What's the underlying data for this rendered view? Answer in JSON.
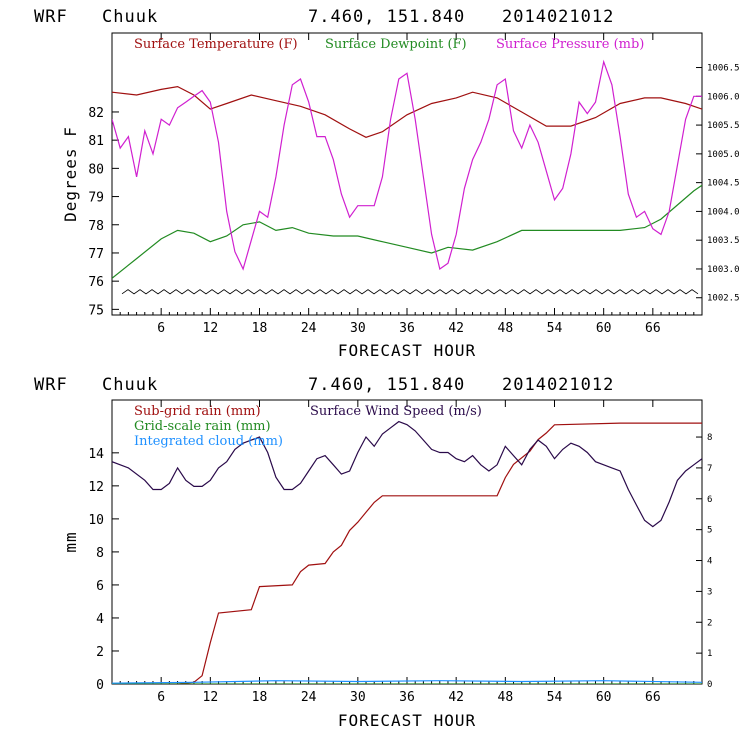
{
  "chart_data": [
    {
      "type": "line",
      "header": {
        "model": "WRF",
        "location": "Chuuk",
        "coords": "7.460, 151.840",
        "run": "2014021012"
      },
      "xlabel": "FORECAST HOUR",
      "ylabel": "Degrees F",
      "xlim": [
        0,
        72
      ],
      "ylim": [
        74.8,
        84.8
      ],
      "y2lim": [
        1002.2,
        1007.1
      ],
      "x_ticks": [
        "6",
        "12",
        "18",
        "24",
        "30",
        "36",
        "42",
        "48",
        "54",
        "60",
        "66"
      ],
      "y_ticks": [
        "75",
        "76",
        "77",
        "78",
        "79",
        "80",
        "81",
        "82"
      ],
      "y2_ticks": [
        "1002.5",
        "1003.0",
        "1003.5",
        "1004.0",
        "1004.5",
        "1005.0",
        "1005.5",
        "1006.0",
        "1006.5"
      ],
      "legend_position": "top",
      "colors": {
        "temp": "#a01010",
        "dew": "#228b22",
        "pressure": "#d020d0",
        "wind_barb": "#000000"
      },
      "series": [
        {
          "name": "Surface Temperature (F)",
          "axis": "left",
          "color": "#a01010",
          "points": [
            [
              0,
              82.7
            ],
            [
              3,
              82.6
            ],
            [
              6,
              82.8
            ],
            [
              8,
              82.9
            ],
            [
              10,
              82.6
            ],
            [
              12,
              82.1
            ],
            [
              14,
              82.3
            ],
            [
              17,
              82.6
            ],
            [
              20,
              82.4
            ],
            [
              23,
              82.2
            ],
            [
              26,
              81.9
            ],
            [
              29,
              81.4
            ],
            [
              31,
              81.1
            ],
            [
              33,
              81.3
            ],
            [
              36,
              81.9
            ],
            [
              39,
              82.3
            ],
            [
              42,
              82.5
            ],
            [
              44,
              82.7
            ],
            [
              47,
              82.5
            ],
            [
              50,
              82.0
            ],
            [
              53,
              81.5
            ],
            [
              56,
              81.5
            ],
            [
              59,
              81.8
            ],
            [
              62,
              82.3
            ],
            [
              65,
              82.5
            ],
            [
              67,
              82.5
            ],
            [
              70,
              82.3
            ],
            [
              72,
              82.1
            ]
          ]
        },
        {
          "name": "Surface Dewpoint (F)",
          "axis": "left",
          "color": "#228b22",
          "points": [
            [
              0,
              76.1
            ],
            [
              3,
              76.8
            ],
            [
              6,
              77.5
            ],
            [
              8,
              77.8
            ],
            [
              10,
              77.7
            ],
            [
              12,
              77.4
            ],
            [
              14,
              77.6
            ],
            [
              16,
              78.0
            ],
            [
              18,
              78.1
            ],
            [
              20,
              77.8
            ],
            [
              22,
              77.9
            ],
            [
              24,
              77.7
            ],
            [
              27,
              77.6
            ],
            [
              30,
              77.6
            ],
            [
              33,
              77.4
            ],
            [
              36,
              77.2
            ],
            [
              39,
              77.0
            ],
            [
              41,
              77.2
            ],
            [
              44,
              77.1
            ],
            [
              47,
              77.4
            ],
            [
              50,
              77.8
            ],
            [
              53,
              77.8
            ],
            [
              56,
              77.8
            ],
            [
              59,
              77.8
            ],
            [
              62,
              77.8
            ],
            [
              65,
              77.9
            ],
            [
              67,
              78.2
            ],
            [
              69,
              78.7
            ],
            [
              71,
              79.2
            ],
            [
              72,
              79.4
            ]
          ]
        },
        {
          "name": "Surface Pressure (mb)",
          "axis": "right",
          "color": "#d020d0",
          "points": [
            [
              0,
              1005.6
            ],
            [
              1,
              1005.1
            ],
            [
              2,
              1005.3
            ],
            [
              3,
              1004.6
            ],
            [
              4,
              1005.4
            ],
            [
              5,
              1005.0
            ],
            [
              6,
              1005.6
            ],
            [
              7,
              1005.5
            ],
            [
              8,
              1005.8
            ],
            [
              9,
              1005.9
            ],
            [
              10,
              1006.0
            ],
            [
              11,
              1006.1
            ],
            [
              12,
              1005.9
            ],
            [
              13,
              1005.2
            ],
            [
              14,
              1004.0
            ],
            [
              15,
              1003.3
            ],
            [
              16,
              1003.0
            ],
            [
              17,
              1003.5
            ],
            [
              18,
              1004.0
            ],
            [
              19,
              1003.9
            ],
            [
              20,
              1004.6
            ],
            [
              21,
              1005.5
            ],
            [
              22,
              1006.2
            ],
            [
              23,
              1006.3
            ],
            [
              24,
              1005.9
            ],
            [
              25,
              1005.3
            ],
            [
              26,
              1005.3
            ],
            [
              27,
              1004.9
            ],
            [
              28,
              1004.3
            ],
            [
              29,
              1003.9
            ],
            [
              30,
              1004.1
            ],
            [
              31,
              1004.1
            ],
            [
              32,
              1004.1
            ],
            [
              33,
              1004.6
            ],
            [
              34,
              1005.6
            ],
            [
              35,
              1006.3
            ],
            [
              36,
              1006.4
            ],
            [
              37,
              1005.6
            ],
            [
              38,
              1004.6
            ],
            [
              39,
              1003.6
            ],
            [
              40,
              1003.0
            ],
            [
              41,
              1003.1
            ],
            [
              42,
              1003.6
            ],
            [
              43,
              1004.4
            ],
            [
              44,
              1004.9
            ],
            [
              45,
              1005.2
            ],
            [
              46,
              1005.6
            ],
            [
              47,
              1006.2
            ],
            [
              48,
              1006.3
            ],
            [
              49,
              1005.4
            ],
            [
              50,
              1005.1
            ],
            [
              51,
              1005.5
            ],
            [
              52,
              1005.2
            ],
            [
              53,
              1004.7
            ],
            [
              54,
              1004.2
            ],
            [
              55,
              1004.4
            ],
            [
              56,
              1005.0
            ],
            [
              57,
              1005.9
            ],
            [
              58,
              1005.7
            ],
            [
              59,
              1005.9
            ],
            [
              60,
              1006.6
            ],
            [
              61,
              1006.2
            ],
            [
              62,
              1005.3
            ],
            [
              63,
              1004.3
            ],
            [
              64,
              1003.9
            ],
            [
              65,
              1004.0
            ],
            [
              66,
              1003.7
            ],
            [
              67,
              1003.6
            ],
            [
              68,
              1004.0
            ],
            [
              69,
              1004.8
            ],
            [
              70,
              1005.6
            ],
            [
              71,
              1006.0
            ],
            [
              72,
              1006.0
            ]
          ]
        }
      ]
    },
    {
      "type": "line",
      "header": {
        "model": "WRF",
        "location": "Chuuk",
        "coords": "7.460, 151.840",
        "run": "2014021012"
      },
      "xlabel": "FORECAST HOUR",
      "ylabel": "mm",
      "xlim": [
        0,
        72
      ],
      "ylim": [
        0,
        17.2
      ],
      "y2lim": [
        0,
        9.2
      ],
      "x_ticks": [
        "6",
        "12",
        "18",
        "24",
        "30",
        "36",
        "42",
        "48",
        "54",
        "60",
        "66"
      ],
      "y_ticks": [
        "0",
        "2",
        "4",
        "6",
        "8",
        "10",
        "12",
        "14"
      ],
      "y2_ticks": [
        "0",
        "1",
        "2",
        "3",
        "4",
        "5",
        "6",
        "7",
        "8"
      ],
      "legend_position": "top",
      "colors": {
        "subgrid": "#a01010",
        "gridscale": "#228b22",
        "cloud": "#1e90ff",
        "wind": "#2a0a4a"
      },
      "series": [
        {
          "name": "Sub-grid rain (mm)",
          "axis": "left",
          "color": "#a01010",
          "points": [
            [
              0,
              0
            ],
            [
              8,
              0
            ],
            [
              10,
              0.1
            ],
            [
              11,
              0.5
            ],
            [
              12,
              2.5
            ],
            [
              13,
              4.3
            ],
            [
              17,
              4.5
            ],
            [
              18,
              5.9
            ],
            [
              22,
              6.0
            ],
            [
              23,
              6.8
            ],
            [
              24,
              7.2
            ],
            [
              26,
              7.3
            ],
            [
              27,
              8.0
            ],
            [
              28,
              8.4
            ],
            [
              29,
              9.3
            ],
            [
              30,
              9.8
            ],
            [
              31,
              10.4
            ],
            [
              32,
              11.0
            ],
            [
              33,
              11.4
            ],
            [
              47,
              11.4
            ],
            [
              48,
              12.5
            ],
            [
              49,
              13.3
            ],
            [
              51,
              14.1
            ],
            [
              52,
              14.8
            ],
            [
              53,
              15.2
            ],
            [
              54,
              15.7
            ],
            [
              62,
              15.8
            ],
            [
              66,
              15.8
            ],
            [
              72,
              15.8
            ]
          ]
        },
        {
          "name": "Grid-scale rain (mm)",
          "axis": "left",
          "color": "#228b22",
          "points": [
            [
              0,
              0
            ],
            [
              72,
              0
            ]
          ]
        },
        {
          "name": "Integrated cloud (mm)",
          "axis": "left",
          "color": "#1e90ff",
          "points": [
            [
              0,
              0.05
            ],
            [
              10,
              0.1
            ],
            [
              20,
              0.2
            ],
            [
              30,
              0.15
            ],
            [
              40,
              0.2
            ],
            [
              50,
              0.15
            ],
            [
              60,
              0.2
            ],
            [
              72,
              0.1
            ]
          ]
        },
        {
          "name": "Surface Wind Speed (m/s)",
          "axis": "right",
          "color": "#2a0a4a",
          "points": [
            [
              0,
              7.2
            ],
            [
              2,
              7.0
            ],
            [
              4,
              6.6
            ],
            [
              5,
              6.3
            ],
            [
              6,
              6.3
            ],
            [
              7,
              6.5
            ],
            [
              8,
              7.0
            ],
            [
              9,
              6.6
            ],
            [
              10,
              6.4
            ],
            [
              11,
              6.4
            ],
            [
              12,
              6.6
            ],
            [
              13,
              7.0
            ],
            [
              14,
              7.2
            ],
            [
              15,
              7.6
            ],
            [
              16,
              7.8
            ],
            [
              17,
              7.9
            ],
            [
              18,
              8.0
            ],
            [
              19,
              7.5
            ],
            [
              20,
              6.7
            ],
            [
              21,
              6.3
            ],
            [
              22,
              6.3
            ],
            [
              23,
              6.5
            ],
            [
              24,
              6.9
            ],
            [
              25,
              7.3
            ],
            [
              26,
              7.4
            ],
            [
              27,
              7.1
            ],
            [
              28,
              6.8
            ],
            [
              29,
              6.9
            ],
            [
              30,
              7.5
            ],
            [
              31,
              8.0
            ],
            [
              32,
              7.7
            ],
            [
              33,
              8.1
            ],
            [
              34,
              8.3
            ],
            [
              35,
              8.5
            ],
            [
              36,
              8.4
            ],
            [
              37,
              8.2
            ],
            [
              38,
              7.9
            ],
            [
              39,
              7.6
            ],
            [
              40,
              7.5
            ],
            [
              41,
              7.5
            ],
            [
              42,
              7.3
            ],
            [
              43,
              7.2
            ],
            [
              44,
              7.4
            ],
            [
              45,
              7.1
            ],
            [
              46,
              6.9
            ],
            [
              47,
              7.1
            ],
            [
              48,
              7.7
            ],
            [
              49,
              7.4
            ],
            [
              50,
              7.1
            ],
            [
              51,
              7.6
            ],
            [
              52,
              7.9
            ],
            [
              53,
              7.7
            ],
            [
              54,
              7.3
            ],
            [
              55,
              7.6
            ],
            [
              56,
              7.8
            ],
            [
              57,
              7.7
            ],
            [
              58,
              7.5
            ],
            [
              59,
              7.2
            ],
            [
              60,
              7.1
            ],
            [
              61,
              7.0
            ],
            [
              62,
              6.9
            ],
            [
              63,
              6.3
            ],
            [
              64,
              5.8
            ],
            [
              65,
              5.3
            ],
            [
              66,
              5.1
            ],
            [
              67,
              5.3
            ],
            [
              68,
              5.9
            ],
            [
              69,
              6.6
            ],
            [
              70,
              6.9
            ],
            [
              71,
              7.1
            ],
            [
              72,
              7.3
            ]
          ]
        }
      ]
    }
  ]
}
